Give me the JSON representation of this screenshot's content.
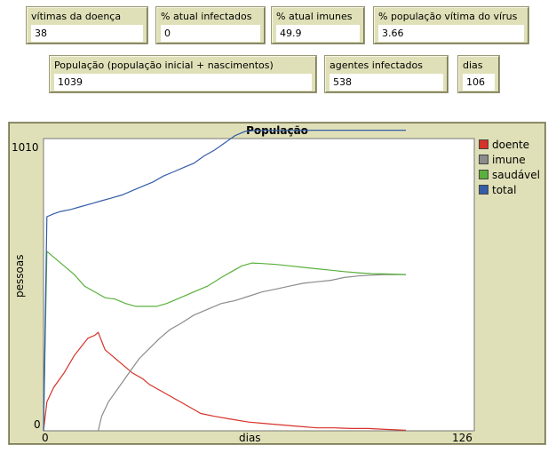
{
  "monitors": {
    "deaths": {
      "label": "vítimas da doença",
      "value": "38"
    },
    "infected_pct": {
      "label": "% atual infectados",
      "value": "0"
    },
    "immune_pct": {
      "label": "% atual imunes",
      "value": "49.9"
    },
    "victim_pct": {
      "label": "% população vítima do vírus",
      "value": "3.66"
    },
    "population": {
      "label": "População (população inicial + nascimentos)",
      "value": "1039"
    },
    "infected_agents": {
      "label": "agentes infectados",
      "value": "538"
    },
    "days": {
      "label": "dias",
      "value": "106"
    }
  },
  "chart_data": {
    "type": "line",
    "title": "População",
    "xlabel": "dias",
    "ylabel": "pessoas",
    "xlim": [
      0,
      126
    ],
    "ylim": [
      0,
      1010
    ],
    "x_tick_labels": [
      "0",
      "126"
    ],
    "y_tick_labels": [
      "0",
      "1010"
    ],
    "legend_position": "right",
    "series": [
      {
        "name": "doente",
        "color": "#d73229",
        "points": [
          [
            0,
            0
          ],
          [
            1,
            100
          ],
          [
            3,
            150
          ],
          [
            6,
            200
          ],
          [
            9,
            260
          ],
          [
            11,
            290
          ],
          [
            13,
            320
          ],
          [
            15,
            330
          ],
          [
            16,
            340
          ],
          [
            17,
            310
          ],
          [
            18,
            280
          ],
          [
            20,
            260
          ],
          [
            23,
            230
          ],
          [
            26,
            200
          ],
          [
            29,
            180
          ],
          [
            31,
            160
          ],
          [
            34,
            140
          ],
          [
            37,
            120
          ],
          [
            40,
            100
          ],
          [
            43,
            80
          ],
          [
            46,
            60
          ],
          [
            50,
            50
          ],
          [
            55,
            40
          ],
          [
            60,
            30
          ],
          [
            65,
            25
          ],
          [
            70,
            20
          ],
          [
            75,
            15
          ],
          [
            80,
            10
          ],
          [
            85,
            10
          ],
          [
            90,
            8
          ],
          [
            95,
            8
          ],
          [
            100,
            5
          ],
          [
            106,
            2
          ]
        ]
      },
      {
        "name": "imune",
        "color": "#8c8c8c",
        "points": [
          [
            0,
            0
          ],
          [
            16,
            0
          ],
          [
            17,
            50
          ],
          [
            19,
            100
          ],
          [
            22,
            150
          ],
          [
            25,
            200
          ],
          [
            28,
            250
          ],
          [
            31,
            285
          ],
          [
            34,
            320
          ],
          [
            37,
            350
          ],
          [
            40,
            370
          ],
          [
            44,
            400
          ],
          [
            48,
            420
          ],
          [
            52,
            440
          ],
          [
            56,
            450
          ],
          [
            60,
            465
          ],
          [
            64,
            480
          ],
          [
            68,
            490
          ],
          [
            72,
            500
          ],
          [
            76,
            510
          ],
          [
            80,
            515
          ],
          [
            84,
            520
          ],
          [
            88,
            530
          ],
          [
            92,
            535
          ],
          [
            96,
            538
          ],
          [
            100,
            540
          ],
          [
            106,
            540
          ]
        ]
      },
      {
        "name": "saudável",
        "color": "#59b03c",
        "points": [
          [
            0,
            0
          ],
          [
            1,
            620
          ],
          [
            3,
            600
          ],
          [
            6,
            570
          ],
          [
            9,
            540
          ],
          [
            12,
            500
          ],
          [
            15,
            480
          ],
          [
            18,
            460
          ],
          [
            21,
            455
          ],
          [
            24,
            440
          ],
          [
            27,
            430
          ],
          [
            30,
            430
          ],
          [
            33,
            430
          ],
          [
            36,
            440
          ],
          [
            40,
            460
          ],
          [
            44,
            480
          ],
          [
            48,
            500
          ],
          [
            52,
            530
          ],
          [
            55,
            550
          ],
          [
            58,
            570
          ],
          [
            61,
            580
          ],
          [
            64,
            578
          ],
          [
            68,
            575
          ],
          [
            72,
            570
          ],
          [
            76,
            565
          ],
          [
            80,
            560
          ],
          [
            84,
            555
          ],
          [
            88,
            550
          ],
          [
            92,
            546
          ],
          [
            96,
            543
          ],
          [
            100,
            542
          ],
          [
            106,
            540
          ]
        ]
      },
      {
        "name": "total",
        "color": "#345da9",
        "points": [
          [
            0,
            0
          ],
          [
            1,
            740
          ],
          [
            3,
            750
          ],
          [
            5,
            758
          ],
          [
            8,
            765
          ],
          [
            11,
            775
          ],
          [
            14,
            785
          ],
          [
            17,
            795
          ],
          [
            20,
            805
          ],
          [
            23,
            815
          ],
          [
            26,
            830
          ],
          [
            29,
            845
          ],
          [
            32,
            860
          ],
          [
            35,
            880
          ],
          [
            38,
            895
          ],
          [
            41,
            910
          ],
          [
            44,
            925
          ],
          [
            47,
            950
          ],
          [
            50,
            970
          ],
          [
            53,
            995
          ],
          [
            56,
            1020
          ],
          [
            59,
            1035
          ],
          [
            62,
            1038
          ],
          [
            70,
            1038
          ],
          [
            80,
            1039
          ],
          [
            90,
            1039
          ],
          [
            100,
            1039
          ],
          [
            106,
            1039
          ]
        ]
      }
    ]
  }
}
